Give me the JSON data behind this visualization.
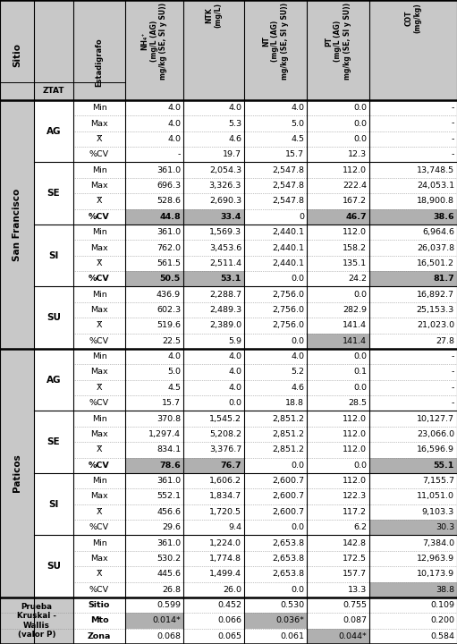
{
  "col_headers": [
    "NH₄⁺\n(mg/L (AG)\nmg/kg (SE, SI y SU))",
    "NTK\n(mg/L)",
    "NT\n(mg/L (AG)\nmg/kg (SE, SI y SU))",
    "PT\n(mg/L (AG)\nmg/kg (SE, SI y SU))",
    "COT\n(mg/kg)"
  ],
  "bg_header": "#c8c8c8",
  "bg_white": "#ffffff",
  "bg_highlight": "#b0b0b0",
  "bg_zone": "#e8e8e8",
  "sections": [
    {
      "site": "San Francisco",
      "zones": [
        {
          "zone": "AG",
          "rows": [
            {
              "stat": "Min",
              "vals": [
                "4.0",
                "4.0",
                "4.0",
                "0.0",
                "-"
              ],
              "bold": false,
              "highlight": [
                false,
                false,
                false,
                false,
                false
              ]
            },
            {
              "stat": "Max",
              "vals": [
                "4.0",
                "5.3",
                "5.0",
                "0.0",
                "-"
              ],
              "bold": false,
              "highlight": [
                false,
                false,
                false,
                false,
                false
              ]
            },
            {
              "stat": "X̅",
              "vals": [
                "4.0",
                "4.6",
                "4.5",
                "0.0",
                "-"
              ],
              "bold": false,
              "highlight": [
                false,
                false,
                false,
                false,
                false
              ]
            },
            {
              "stat": "%CV",
              "vals": [
                "-",
                "19.7",
                "15.7",
                "12.3",
                "-"
              ],
              "bold": false,
              "highlight": [
                false,
                false,
                false,
                false,
                false
              ]
            }
          ]
        },
        {
          "zone": "SE",
          "rows": [
            {
              "stat": "Min",
              "vals": [
                "361.0",
                "2,054.3",
                "2,547.8",
                "112.0",
                "13,748.5"
              ],
              "bold": false,
              "highlight": [
                false,
                false,
                false,
                false,
                false
              ]
            },
            {
              "stat": "Max",
              "vals": [
                "696.3",
                "3,326.3",
                "2,547.8",
                "222.4",
                "24,053.1"
              ],
              "bold": false,
              "highlight": [
                false,
                false,
                false,
                false,
                false
              ]
            },
            {
              "stat": "X̅",
              "vals": [
                "528.6",
                "2,690.3",
                "2,547.8",
                "167.2",
                "18,900.8"
              ],
              "bold": false,
              "highlight": [
                false,
                false,
                false,
                false,
                false
              ]
            },
            {
              "stat": "%CV",
              "vals": [
                "44.8",
                "33.4",
                "0",
                "46.7",
                "38.6"
              ],
              "bold": true,
              "highlight": [
                true,
                true,
                false,
                true,
                true
              ]
            }
          ]
        },
        {
          "zone": "SI",
          "rows": [
            {
              "stat": "Min",
              "vals": [
                "361.0",
                "1,569.3",
                "2,440.1",
                "112.0",
                "6,964.6"
              ],
              "bold": false,
              "highlight": [
                false,
                false,
                false,
                false,
                false
              ]
            },
            {
              "stat": "Max",
              "vals": [
                "762.0",
                "3,453.6",
                "2,440.1",
                "158.2",
                "26,037.8"
              ],
              "bold": false,
              "highlight": [
                false,
                false,
                false,
                false,
                false
              ]
            },
            {
              "stat": "X̅",
              "vals": [
                "561.5",
                "2,511.4",
                "2,440.1",
                "135.1",
                "16,501.2"
              ],
              "bold": false,
              "highlight": [
                false,
                false,
                false,
                false,
                false
              ]
            },
            {
              "stat": "%CV",
              "vals": [
                "50.5",
                "53.1",
                "0.0",
                "24.2",
                "81.7"
              ],
              "bold": true,
              "highlight": [
                true,
                true,
                false,
                false,
                true
              ]
            }
          ]
        },
        {
          "zone": "SU",
          "rows": [
            {
              "stat": "Min",
              "vals": [
                "436.9",
                "2,288.7",
                "2,756.0",
                "0.0",
                "16,892.7"
              ],
              "bold": false,
              "highlight": [
                false,
                false,
                false,
                false,
                false
              ]
            },
            {
              "stat": "Max",
              "vals": [
                "602.3",
                "2,489.3",
                "2,756.0",
                "282.9",
                "25,153.3"
              ],
              "bold": false,
              "highlight": [
                false,
                false,
                false,
                false,
                false
              ]
            },
            {
              "stat": "X̅",
              "vals": [
                "519.6",
                "2,389.0",
                "2,756.0",
                "141.4",
                "21,023.0"
              ],
              "bold": false,
              "highlight": [
                false,
                false,
                false,
                false,
                false
              ]
            },
            {
              "stat": "%CV",
              "vals": [
                "22.5",
                "5.9",
                "0.0",
                "141.4",
                "27.8"
              ],
              "bold": false,
              "highlight": [
                false,
                false,
                false,
                true,
                false
              ]
            }
          ]
        }
      ]
    },
    {
      "site": "Paticos",
      "zones": [
        {
          "zone": "AG",
          "rows": [
            {
              "stat": "Min",
              "vals": [
                "4.0",
                "4.0",
                "4.0",
                "0.0",
                "-"
              ],
              "bold": false,
              "highlight": [
                false,
                false,
                false,
                false,
                false
              ]
            },
            {
              "stat": "Max",
              "vals": [
                "5.0",
                "4.0",
                "5.2",
                "0.1",
                "-"
              ],
              "bold": false,
              "highlight": [
                false,
                false,
                false,
                false,
                false
              ]
            },
            {
              "stat": "X̅",
              "vals": [
                "4.5",
                "4.0",
                "4.6",
                "0.0",
                "-"
              ],
              "bold": false,
              "highlight": [
                false,
                false,
                false,
                false,
                false
              ]
            },
            {
              "stat": "%CV",
              "vals": [
                "15.7",
                "0.0",
                "18.8",
                "28.5",
                "-"
              ],
              "bold": false,
              "highlight": [
                false,
                false,
                false,
                false,
                false
              ]
            }
          ]
        },
        {
          "zone": "SE",
          "rows": [
            {
              "stat": "Min",
              "vals": [
                "370.8",
                "1,545.2",
                "2,851.2",
                "112.0",
                "10,127.7"
              ],
              "bold": false,
              "highlight": [
                false,
                false,
                false,
                false,
                false
              ]
            },
            {
              "stat": "Max",
              "vals": [
                "1,297.4",
                "5,208.2",
                "2,851.2",
                "112.0",
                "23,066.0"
              ],
              "bold": false,
              "highlight": [
                false,
                false,
                false,
                false,
                false
              ]
            },
            {
              "stat": "X̅",
              "vals": [
                "834.1",
                "3,376.7",
                "2,851.2",
                "112.0",
                "16,596.9"
              ],
              "bold": false,
              "highlight": [
                false,
                false,
                false,
                false,
                false
              ]
            },
            {
              "stat": "%CV",
              "vals": [
                "78.6",
                "76.7",
                "0.0",
                "0.0",
                "55.1"
              ],
              "bold": true,
              "highlight": [
                true,
                true,
                false,
                false,
                true
              ]
            }
          ]
        },
        {
          "zone": "SI",
          "rows": [
            {
              "stat": "Min",
              "vals": [
                "361.0",
                "1,606.2",
                "2,600.7",
                "112.0",
                "7,155.7"
              ],
              "bold": false,
              "highlight": [
                false,
                false,
                false,
                false,
                false
              ]
            },
            {
              "stat": "Max",
              "vals": [
                "552.1",
                "1,834.7",
                "2,600.7",
                "122.3",
                "11,051.0"
              ],
              "bold": false,
              "highlight": [
                false,
                false,
                false,
                false,
                false
              ]
            },
            {
              "stat": "X̅",
              "vals": [
                "456.6",
                "1,720.5",
                "2,600.7",
                "117.2",
                "9,103.3"
              ],
              "bold": false,
              "highlight": [
                false,
                false,
                false,
                false,
                false
              ]
            },
            {
              "stat": "%CV",
              "vals": [
                "29.6",
                "9.4",
                "0.0",
                "6.2",
                "30.3"
              ],
              "bold": false,
              "highlight": [
                false,
                false,
                false,
                false,
                true
              ]
            }
          ]
        },
        {
          "zone": "SU",
          "rows": [
            {
              "stat": "Min",
              "vals": [
                "361.0",
                "1,224.0",
                "2,653.8",
                "142.8",
                "7,384.0"
              ],
              "bold": false,
              "highlight": [
                false,
                false,
                false,
                false,
                false
              ]
            },
            {
              "stat": "Max",
              "vals": [
                "530.2",
                "1,774.8",
                "2,653.8",
                "172.5",
                "12,963.9"
              ],
              "bold": false,
              "highlight": [
                false,
                false,
                false,
                false,
                false
              ]
            },
            {
              "stat": "X̅",
              "vals": [
                "445.6",
                "1,499.4",
                "2,653.8",
                "157.7",
                "10,173.9"
              ],
              "bold": false,
              "highlight": [
                false,
                false,
                false,
                false,
                false
              ]
            },
            {
              "stat": "%CV",
              "vals": [
                "26.8",
                "26.0",
                "0.0",
                "13.3",
                "38.8"
              ],
              "bold": false,
              "highlight": [
                false,
                false,
                false,
                false,
                true
              ]
            }
          ]
        }
      ]
    }
  ],
  "footer": {
    "label": "Prueba\nKruskal -\nWallis\n(valor P)",
    "rows": [
      {
        "stat": "Sitio",
        "vals": [
          "0.599",
          "0.452",
          "0.530",
          "0.755",
          "0.109"
        ],
        "bold": true,
        "highlight": [
          false,
          false,
          false,
          false,
          false
        ]
      },
      {
        "stat": "Mto",
        "vals": [
          "0.014*",
          "0.066",
          "0.036*",
          "0.087",
          "0.200"
        ],
        "bold": true,
        "highlight": [
          true,
          false,
          true,
          false,
          false
        ]
      },
      {
        "stat": "Zona",
        "vals": [
          "0.068",
          "0.065",
          "0.061",
          "0.044*",
          "0.584"
        ],
        "bold": true,
        "highlight": [
          false,
          false,
          false,
          true,
          false
        ]
      }
    ]
  }
}
